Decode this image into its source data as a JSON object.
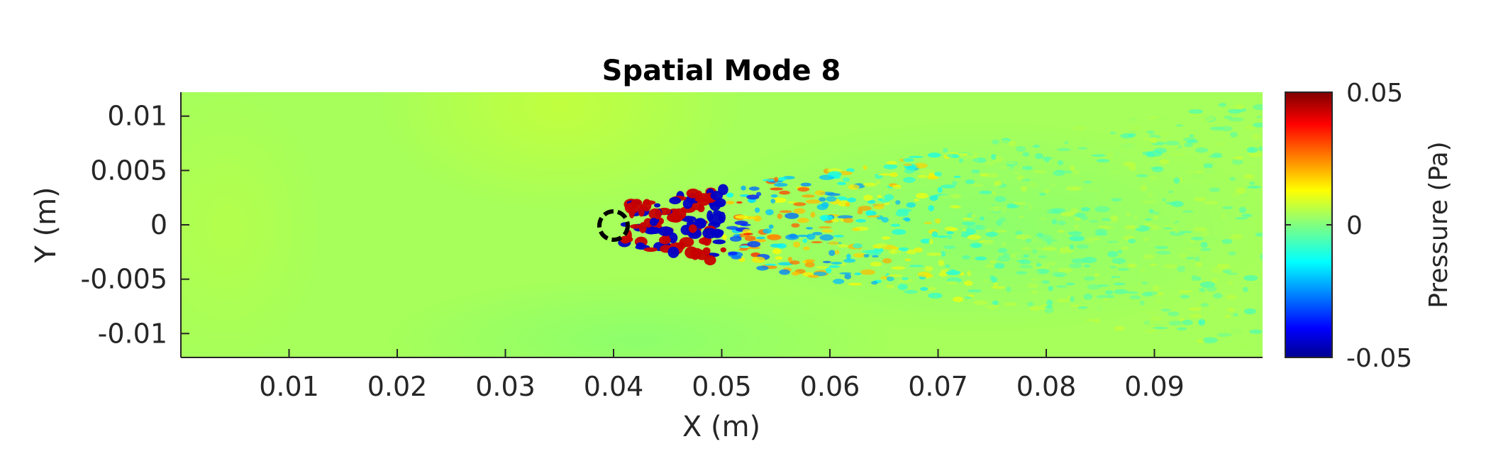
{
  "chart_data": {
    "type": "heatmap",
    "title": "Spatial Mode 8",
    "xlabel": "X (m)",
    "ylabel": "Y (m)",
    "xlim": [
      0,
      0.1
    ],
    "ylim": [
      -0.0122,
      0.0122
    ],
    "x_ticks": [
      0.01,
      0.02,
      0.03,
      0.04,
      0.05,
      0.06,
      0.07,
      0.08,
      0.09
    ],
    "x_tick_labels": [
      "0.01",
      "0.02",
      "0.03",
      "0.04",
      "0.05",
      "0.06",
      "0.07",
      "0.08",
      "0.09"
    ],
    "y_ticks": [
      0.01,
      0.005,
      0,
      -0.005,
      -0.01
    ],
    "y_tick_labels": [
      "0.01",
      "0.005",
      "0",
      "-0.005",
      "-0.01"
    ],
    "grid": false,
    "colormap": "jet",
    "colorbar": {
      "label": "Pressure (Pa)",
      "limits": [
        -0.05,
        0.05
      ],
      "ticks": [
        0.05,
        0,
        -0.05
      ],
      "tick_labels": [
        "0.05",
        "0",
        "-0.05"
      ]
    },
    "obstacle": {
      "shape": "circle",
      "center": [
        0.0398,
        0.0
      ],
      "radius": 0.0013,
      "color": "#000000"
    },
    "field_description_values": {
      "background_level_pa": 0.012,
      "wake_start_x": 0.041,
      "wake_peak_amplitude_pa": 0.05
    }
  }
}
